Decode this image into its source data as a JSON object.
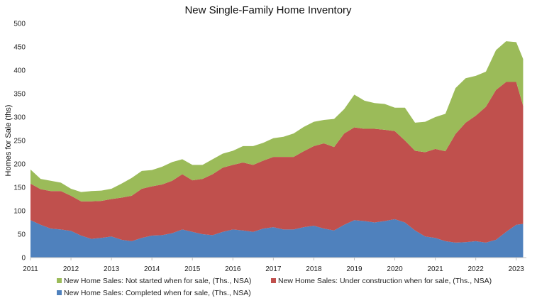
{
  "chart_data": {
    "type": "area",
    "stacked": true,
    "title": "New Single-Family Home Inventory",
    "xlabel": "",
    "ylabel": "Homes for Sale (ths)",
    "ylim": [
      0,
      500
    ],
    "yticks": [
      0,
      50,
      100,
      150,
      200,
      250,
      300,
      350,
      400,
      450,
      500
    ],
    "xlim": [
      2011,
      2023.25
    ],
    "xticks": [
      2011,
      2012,
      2013,
      2014,
      2015,
      2016,
      2017,
      2018,
      2019,
      2020,
      2021,
      2022,
      2023
    ],
    "xtick_labels": [
      "2011",
      "2012",
      "2013",
      "2014",
      "2015",
      "2016",
      "2017",
      "2018",
      "2019",
      "2020",
      "2021",
      "2022",
      "2023"
    ],
    "grid": false,
    "legend_position": "bottom",
    "x": [
      2011.0,
      2011.25,
      2011.5,
      2011.75,
      2012.0,
      2012.25,
      2012.5,
      2012.75,
      2013.0,
      2013.25,
      2013.5,
      2013.75,
      2014.0,
      2014.25,
      2014.5,
      2014.75,
      2015.0,
      2015.25,
      2015.5,
      2015.75,
      2016.0,
      2016.25,
      2016.5,
      2016.75,
      2017.0,
      2017.25,
      2017.5,
      2017.75,
      2018.0,
      2018.25,
      2018.5,
      2018.75,
      2019.0,
      2019.25,
      2019.5,
      2019.75,
      2020.0,
      2020.25,
      2020.5,
      2020.75,
      2021.0,
      2021.25,
      2021.5,
      2021.75,
      2022.0,
      2022.25,
      2022.5,
      2022.75,
      2023.0,
      2023.17
    ],
    "series": [
      {
        "name": "New Home Sales: Completed when for sale, (Ths., NSA)",
        "color": "#4f81bd",
        "values": [
          80,
          70,
          62,
          60,
          57,
          47,
          40,
          42,
          45,
          38,
          35,
          42,
          47,
          48,
          52,
          60,
          55,
          50,
          48,
          55,
          60,
          58,
          55,
          62,
          65,
          60,
          60,
          65,
          68,
          62,
          58,
          70,
          80,
          78,
          75,
          78,
          82,
          75,
          58,
          45,
          42,
          35,
          32,
          33,
          35,
          32,
          38,
          55,
          70,
          72
        ]
      },
      {
        "name": "New Home Sales: Under construction when for sale, (Ths., NSA)",
        "color": "#c0504d",
        "values": [
          78,
          76,
          80,
          82,
          75,
          73,
          80,
          79,
          80,
          90,
          97,
          105,
          105,
          108,
          112,
          118,
          110,
          118,
          130,
          137,
          138,
          145,
          143,
          145,
          150,
          155,
          155,
          162,
          170,
          182,
          178,
          195,
          198,
          197,
          200,
          195,
          188,
          175,
          170,
          180,
          190,
          192,
          232,
          255,
          268,
          290,
          320,
          320,
          305,
          252
        ]
      },
      {
        "name": "New Home Sales: Not started when for sale, (Ths., NSA)",
        "color": "#9bbb59",
        "values": [
          30,
          22,
          22,
          18,
          15,
          20,
          22,
          22,
          22,
          30,
          38,
          38,
          35,
          38,
          40,
          32,
          33,
          30,
          32,
          30,
          30,
          35,
          40,
          38,
          40,
          43,
          50,
          52,
          52,
          50,
          60,
          52,
          70,
          60,
          55,
          55,
          50,
          70,
          60,
          65,
          68,
          80,
          98,
          95,
          85,
          75,
          85,
          87,
          85,
          100
        ]
      }
    ]
  }
}
